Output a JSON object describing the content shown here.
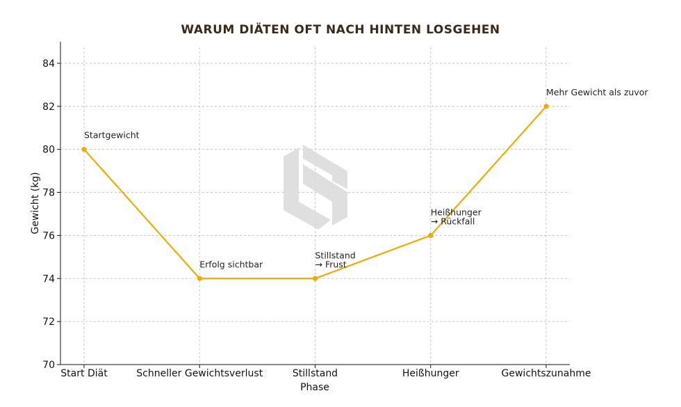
{
  "chart_data": {
    "type": "line",
    "title": "WARUM DIÄTEN OFT NACH HINTEN LOSGEHEN",
    "xlabel": "Phase",
    "ylabel": "Gewicht (kg)",
    "categories": [
      "Start Diät",
      "Schneller Gewichtsverlust",
      "Stillstand",
      "Heißhunger",
      "Gewichtszunahme"
    ],
    "values": [
      80,
      74,
      74,
      76,
      82
    ],
    "ylim": [
      70,
      85
    ],
    "yticks": [
      70,
      72,
      74,
      76,
      78,
      80,
      82,
      84
    ],
    "grid": true,
    "line_color": "#f2a900",
    "annotations": [
      [
        "Startgewicht"
      ],
      [
        "Erfolg sichtbar"
      ],
      [
        "Stillstand",
        "→ Frust"
      ],
      [
        "Heißhunger",
        "→ Rückfall"
      ],
      [
        "Mehr Gewicht als zuvor"
      ]
    ]
  },
  "watermark": {
    "icon": "ls-logo-icon",
    "color": "#dcdcdc"
  }
}
